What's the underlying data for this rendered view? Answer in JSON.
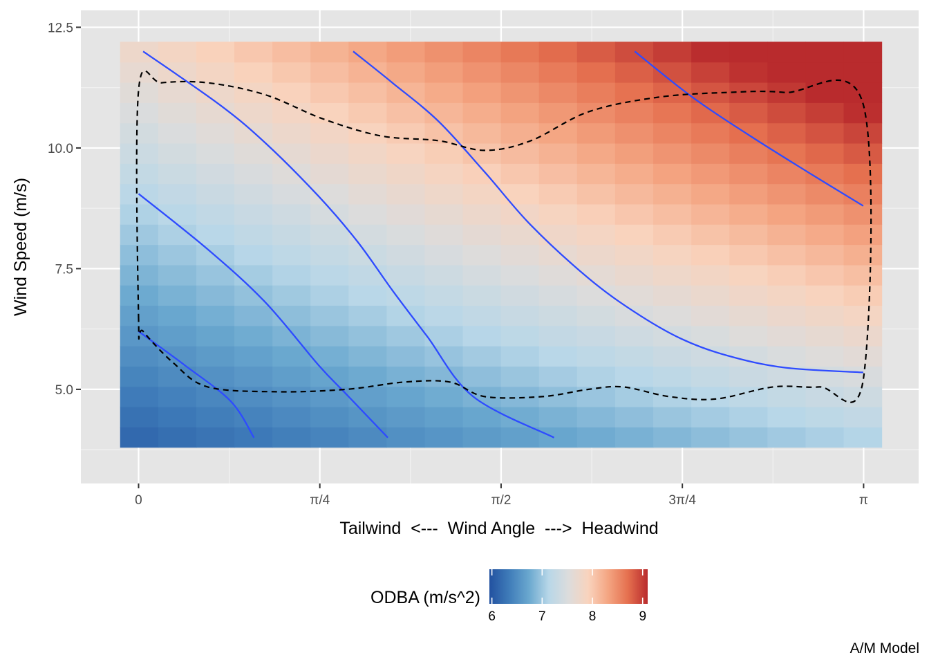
{
  "chart_data": {
    "type": "heatmap",
    "title": "",
    "xlabel": "Tailwind  <---  Wind Angle  --->  Headwind",
    "ylabel": "Wind Speed (m/s)",
    "caption": "A/M Model",
    "x_tick_labels": [
      "0",
      "π/4",
      "π/2",
      "3π/4",
      "π"
    ],
    "x_tick_values": [
      0,
      0.7854,
      1.5708,
      2.3562,
      3.1416
    ],
    "x_range": [
      -0.25,
      3.38
    ],
    "y_tick_labels": [
      "5.0",
      "7.5",
      "10.0",
      "12.5"
    ],
    "y_tick_values": [
      5.0,
      7.5,
      10.0,
      12.5
    ],
    "y_range": [
      3.05,
      12.85
    ],
    "grid": true,
    "panel_background": "#e5e5e5",
    "tiles": {
      "x_range": [
        -0.08,
        3.22
      ],
      "y_range": [
        3.8,
        12.2
      ],
      "nx": 20,
      "ny": 20,
      "value_model": {
        "description": "ODBA fill increases with wind angle and wind speed",
        "base": 7.62,
        "angle_coef": 0.42,
        "speed_coef": 0.245,
        "interaction": 0.03,
        "angle_center": 1.5708,
        "speed_center": 8.0
      }
    },
    "legend": {
      "title": "ODBA (m/s^2)",
      "position": "bottom",
      "range": [
        5.95,
        9.1
      ],
      "ticks": [
        6,
        7,
        8,
        9
      ],
      "tick_labels": [
        "6",
        "7",
        "8",
        "9"
      ],
      "colors": [
        "#2251a0",
        "#3f7cb9",
        "#6aa8cf",
        "#b8d7e8",
        "#dcdcdc",
        "#f9d3bd",
        "#f4a582",
        "#e5704f",
        "#b92b2d"
      ]
    },
    "contour_color": "#2e4bff",
    "contour_lines": [
      {
        "points": [
          [
            0.0,
            6.2
          ],
          [
            0.2,
            5.5
          ],
          [
            0.4,
            4.75
          ],
          [
            0.5,
            4.0
          ]
        ]
      },
      {
        "points": [
          [
            0.0,
            9.05
          ],
          [
            0.3,
            7.9
          ],
          [
            0.55,
            6.8
          ],
          [
            0.78,
            5.5
          ],
          [
            0.9,
            4.9
          ],
          [
            1.08,
            4.0
          ]
        ]
      },
      {
        "points": [
          [
            0.02,
            12.0
          ],
          [
            0.35,
            10.9
          ],
          [
            0.55,
            10.1
          ],
          [
            0.78,
            9.0
          ],
          [
            0.95,
            8.05
          ],
          [
            1.1,
            7.05
          ],
          [
            1.25,
            6.1
          ],
          [
            1.45,
            4.85
          ],
          [
            1.8,
            4.0
          ]
        ]
      },
      {
        "points": [
          [
            0.93,
            12.0
          ],
          [
            1.1,
            11.35
          ],
          [
            1.3,
            10.55
          ],
          [
            1.5,
            9.5
          ],
          [
            1.7,
            8.4
          ],
          [
            1.95,
            7.3
          ],
          [
            2.15,
            6.6
          ],
          [
            2.35,
            6.05
          ],
          [
            2.55,
            5.7
          ],
          [
            2.8,
            5.45
          ],
          [
            3.14,
            5.35
          ]
        ]
      },
      {
        "points": [
          [
            2.15,
            12.0
          ],
          [
            2.4,
            11.05
          ],
          [
            2.65,
            10.25
          ],
          [
            2.9,
            9.5
          ],
          [
            3.14,
            8.8
          ]
        ]
      }
    ],
    "hull": {
      "style": "dashed",
      "color": "#000000",
      "points": [
        [
          0.0,
          6.45
        ],
        [
          0.0,
          11.2
        ],
        [
          0.1,
          11.35
        ],
        [
          0.3,
          11.35
        ],
        [
          0.55,
          11.1
        ],
        [
          0.8,
          10.6
        ],
        [
          1.05,
          10.25
        ],
        [
          1.3,
          10.15
        ],
        [
          1.5,
          9.95
        ],
        [
          1.7,
          10.15
        ],
        [
          1.95,
          10.75
        ],
        [
          2.25,
          11.05
        ],
        [
          2.55,
          11.15
        ],
        [
          2.8,
          11.15
        ],
        [
          3.14,
          10.9
        ],
        [
          3.14,
          5.2
        ],
        [
          2.95,
          5.05
        ],
        [
          2.75,
          5.05
        ],
        [
          2.5,
          4.8
        ],
        [
          2.3,
          4.85
        ],
        [
          2.1,
          5.05
        ],
        [
          1.95,
          5.0
        ],
        [
          1.75,
          4.85
        ],
        [
          1.5,
          4.85
        ],
        [
          1.35,
          5.15
        ],
        [
          1.15,
          5.15
        ],
        [
          0.9,
          5.0
        ],
        [
          0.6,
          4.95
        ],
        [
          0.3,
          5.05
        ],
        [
          0.15,
          5.55
        ],
        [
          0.02,
          6.2
        ]
      ]
    }
  }
}
